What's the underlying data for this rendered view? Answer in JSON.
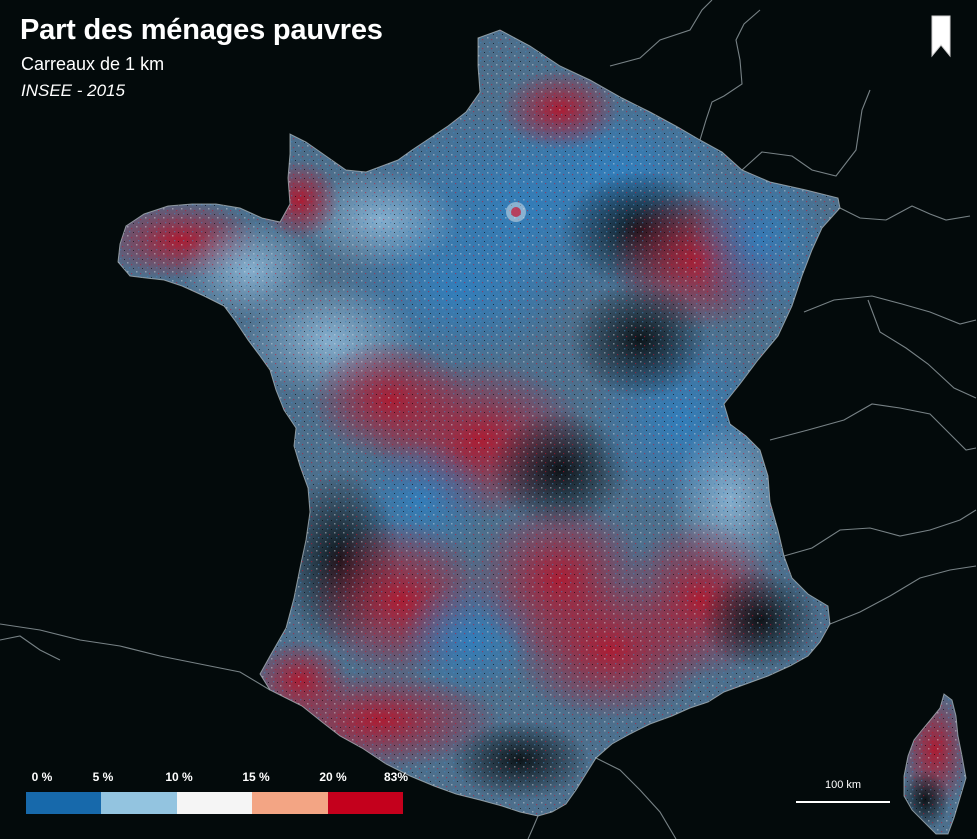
{
  "map": {
    "title": "Part des ménages pauvres",
    "subtitle": "Carreaux de 1 km",
    "source": "INSEE - 2015",
    "background_color": "#030a0b",
    "border_color": "#9aa3a8"
  },
  "legend": {
    "labels": [
      "0 %",
      "5 %",
      "10 %",
      "15 %",
      "20 %",
      "83%"
    ],
    "colors": [
      "#1769ab",
      "#93c4e0",
      "#f5f5f5",
      "#f3a584",
      "#c4001c"
    ]
  },
  "scalebar": {
    "label": "100 km"
  },
  "icons": {
    "bookmark": "bookmark-icon"
  }
}
